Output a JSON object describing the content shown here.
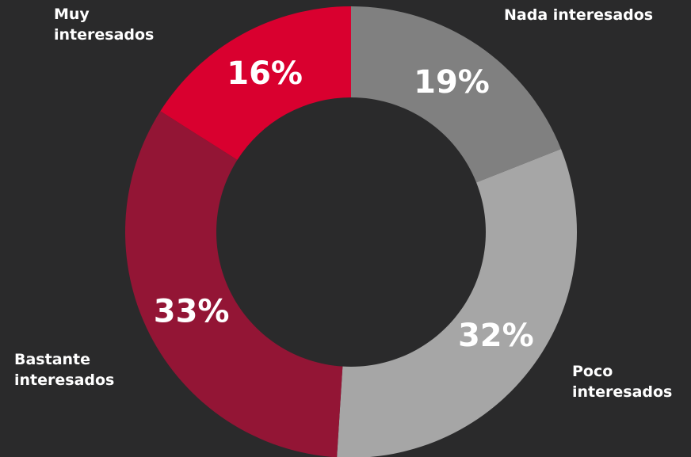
{
  "chart_data": {
    "type": "donut",
    "categories": [
      "Nada interesados",
      "Poco interesados",
      "Bastante interesados",
      "Muy interesados"
    ],
    "values": [
      19,
      32,
      33,
      16
    ],
    "value_labels": [
      "19%",
      "32%",
      "33%",
      "16%"
    ],
    "colors": [
      "#808080",
      "#a6a6a6",
      "#931535",
      "#d9002f"
    ]
  }
}
